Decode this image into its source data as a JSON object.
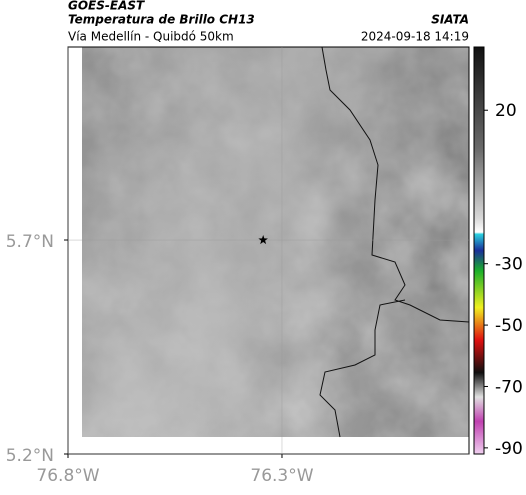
{
  "map": {
    "title_left": [
      "GOES-EAST",
      "Temperatura de Brillo CH13",
      "Vía Medellín - Quibdó 50km"
    ],
    "title_right": [
      "SIATA",
      "2024-09-18 14:19"
    ],
    "xlim": [
      -76.8,
      -75.863
    ],
    "ylim": [
      5.2,
      6.151
    ],
    "xticks": [
      {
        "value": -76.8,
        "label": "76.8°W"
      },
      {
        "value": -76.3,
        "label": "76.3°W"
      }
    ],
    "yticks": [
      {
        "value": 5.7,
        "label": "5.7°N"
      },
      {
        "value": 5.2,
        "label": "5.2°N"
      }
    ],
    "grid": true,
    "marker": {
      "lon": -76.344,
      "lat": 5.7
    },
    "colorbar": {
      "lim": [
        -92,
        40.6
      ],
      "ticks": [
        20,
        -30,
        -50,
        -70,
        -90
      ]
    }
  }
}
